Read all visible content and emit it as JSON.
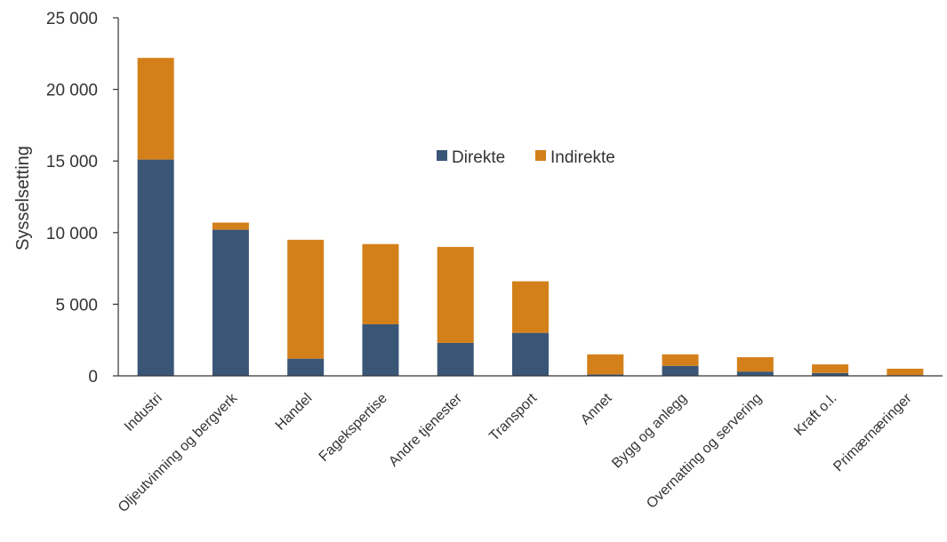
{
  "chart_data": {
    "type": "bar",
    "stacked": true,
    "title": "",
    "xlabel": "",
    "ylabel": "Sysselsetting",
    "ylim": [
      0,
      25000
    ],
    "yticks": [
      0,
      5000,
      10000,
      15000,
      20000,
      25000
    ],
    "ytick_labels": [
      "0",
      "5 000",
      "10 000",
      "15 000",
      "20 000",
      "25 000"
    ],
    "grid": false,
    "legend_position": "center",
    "categories": [
      "Industri",
      "Oljeutvinning og bergverk",
      "Handel",
      "Fagekspertise",
      "Andre tjenester",
      "Transport",
      "Annet",
      "Bygg og anlegg",
      "Overnatting og servering",
      "Kraft o.l.",
      "Primærnæringer"
    ],
    "series": [
      {
        "name": "Direkte",
        "color": "#3a5676",
        "values": [
          15100,
          10200,
          1200,
          3600,
          2300,
          3000,
          100,
          700,
          300,
          200,
          50
        ]
      },
      {
        "name": "Indirekte",
        "color": "#d4801a",
        "values": [
          7100,
          500,
          8300,
          5600,
          6700,
          3600,
          1400,
          800,
          1000,
          600,
          450
        ]
      }
    ]
  }
}
